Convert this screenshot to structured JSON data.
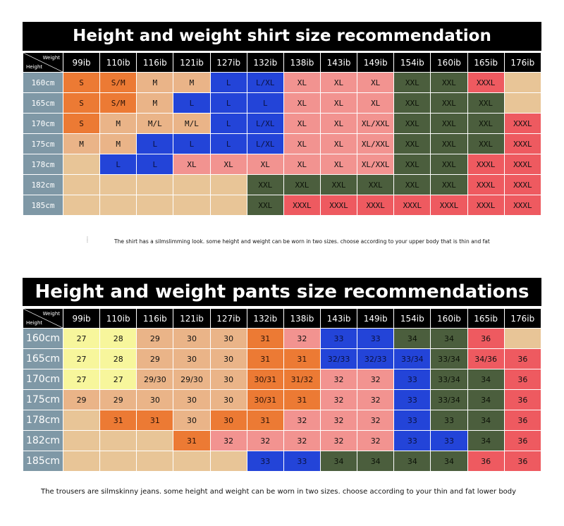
{
  "shirt": {
    "title": "Height and weight shirt size recommendation",
    "corner_weight": "Weight",
    "corner_height": "Height",
    "columns": [
      "99ib",
      "110ib",
      "116ib",
      "121ib",
      "127ib",
      "132ib",
      "138ib",
      "143ib",
      "149ib",
      "154ib",
      "160ib",
      "165ib",
      "176ib"
    ],
    "rows": [
      {
        "height": "160cm",
        "cells": [
          {
            "v": "S",
            "c": "o"
          },
          {
            "v": "S/M",
            "c": "o"
          },
          {
            "v": "M",
            "c": "t"
          },
          {
            "v": "M",
            "c": "t"
          },
          {
            "v": "L",
            "c": "b"
          },
          {
            "v": "L/XL",
            "c": "b"
          },
          {
            "v": "XL",
            "c": "p"
          },
          {
            "v": "XL",
            "c": "p"
          },
          {
            "v": "XL",
            "c": "p"
          },
          {
            "v": "XXL",
            "c": "g"
          },
          {
            "v": "XXL",
            "c": "g"
          },
          {
            "v": "XXXL",
            "c": "r"
          },
          {
            "v": "",
            "c": "e"
          }
        ]
      },
      {
        "height": "165cm",
        "cells": [
          {
            "v": "S",
            "c": "o"
          },
          {
            "v": "S/M",
            "c": "o"
          },
          {
            "v": "M",
            "c": "t"
          },
          {
            "v": "L",
            "c": "b"
          },
          {
            "v": "L",
            "c": "b"
          },
          {
            "v": "L",
            "c": "b"
          },
          {
            "v": "XL",
            "c": "p"
          },
          {
            "v": "XL",
            "c": "p"
          },
          {
            "v": "XL",
            "c": "p"
          },
          {
            "v": "XXL",
            "c": "g"
          },
          {
            "v": "XXL",
            "c": "g"
          },
          {
            "v": "XXL",
            "c": "g"
          },
          {
            "v": "",
            "c": "e"
          }
        ]
      },
      {
        "height": "170cm",
        "cells": [
          {
            "v": "S",
            "c": "o"
          },
          {
            "v": "M",
            "c": "t"
          },
          {
            "v": "M/L",
            "c": "t"
          },
          {
            "v": "M/L",
            "c": "t"
          },
          {
            "v": "L",
            "c": "b"
          },
          {
            "v": "L/XL",
            "c": "b"
          },
          {
            "v": "XL",
            "c": "p"
          },
          {
            "v": "XL",
            "c": "p"
          },
          {
            "v": "XL/XXL",
            "c": "p"
          },
          {
            "v": "XXL",
            "c": "g"
          },
          {
            "v": "XXL",
            "c": "g"
          },
          {
            "v": "XXL",
            "c": "g"
          },
          {
            "v": "XXXL",
            "c": "r"
          }
        ]
      },
      {
        "height": "175cm",
        "cells": [
          {
            "v": "M",
            "c": "t"
          },
          {
            "v": "M",
            "c": "t"
          },
          {
            "v": "L",
            "c": "b"
          },
          {
            "v": "L",
            "c": "b"
          },
          {
            "v": "L",
            "c": "b"
          },
          {
            "v": "L/XL",
            "c": "b"
          },
          {
            "v": "XL",
            "c": "p"
          },
          {
            "v": "XL",
            "c": "p"
          },
          {
            "v": "XL/XXL",
            "c": "p"
          },
          {
            "v": "XXL",
            "c": "g"
          },
          {
            "v": "XXL",
            "c": "g"
          },
          {
            "v": "XXL",
            "c": "g"
          },
          {
            "v": "XXXL",
            "c": "r"
          }
        ]
      },
      {
        "height": "178cm",
        "cells": [
          {
            "v": "",
            "c": "e"
          },
          {
            "v": "L",
            "c": "b"
          },
          {
            "v": "L",
            "c": "b"
          },
          {
            "v": "XL",
            "c": "p"
          },
          {
            "v": "XL",
            "c": "p"
          },
          {
            "v": "XL",
            "c": "p"
          },
          {
            "v": "XL",
            "c": "p"
          },
          {
            "v": "XL",
            "c": "p"
          },
          {
            "v": "XL/XXL",
            "c": "p"
          },
          {
            "v": "XXL",
            "c": "g"
          },
          {
            "v": "XXL",
            "c": "g"
          },
          {
            "v": "XXXL",
            "c": "r"
          },
          {
            "v": "XXXL",
            "c": "r"
          }
        ]
      },
      {
        "height": "182cm",
        "cells": [
          {
            "v": "",
            "c": "e"
          },
          {
            "v": "",
            "c": "e"
          },
          {
            "v": "",
            "c": "e"
          },
          {
            "v": "",
            "c": "e"
          },
          {
            "v": "",
            "c": "e"
          },
          {
            "v": "XXL",
            "c": "g"
          },
          {
            "v": "XXL",
            "c": "g"
          },
          {
            "v": "XXL",
            "c": "g"
          },
          {
            "v": "XXL",
            "c": "g"
          },
          {
            "v": "XXL",
            "c": "g"
          },
          {
            "v": "XXL",
            "c": "g"
          },
          {
            "v": "XXXL",
            "c": "r"
          },
          {
            "v": "XXXL",
            "c": "r"
          }
        ]
      },
      {
        "height": "185cm",
        "cells": [
          {
            "v": "",
            "c": "e"
          },
          {
            "v": "",
            "c": "e"
          },
          {
            "v": "",
            "c": "e"
          },
          {
            "v": "",
            "c": "e"
          },
          {
            "v": "",
            "c": "e"
          },
          {
            "v": "XXL",
            "c": "g"
          },
          {
            "v": "XXXL",
            "c": "r"
          },
          {
            "v": "XXXL",
            "c": "r"
          },
          {
            "v": "XXXL",
            "c": "r"
          },
          {
            "v": "XXXL",
            "c": "r"
          },
          {
            "v": "XXXL",
            "c": "r"
          },
          {
            "v": "XXXL",
            "c": "r"
          },
          {
            "v": "XXXL",
            "c": "r"
          }
        ]
      }
    ],
    "note": "The shirt has a silmslimming look. some height and weight can be worn in two sizes. choose according to your upper body that is thin and fat"
  },
  "pants": {
    "title": "Height and weight pants size recommendations",
    "corner_weight": "Weight",
    "corner_height": "Height",
    "columns": [
      "99ib",
      "110ib",
      "116ib",
      "121ib",
      "127ib",
      "132ib",
      "138ib",
      "143ib",
      "149ib",
      "154ib",
      "160ib",
      "165ib",
      "176ib"
    ],
    "rows": [
      {
        "height": "160cm",
        "cells": [
          {
            "v": "27",
            "c": "y"
          },
          {
            "v": "28",
            "c": "y"
          },
          {
            "v": "29",
            "c": "t"
          },
          {
            "v": "30",
            "c": "t"
          },
          {
            "v": "30",
            "c": "t"
          },
          {
            "v": "31",
            "c": "o"
          },
          {
            "v": "32",
            "c": "p"
          },
          {
            "v": "33",
            "c": "b"
          },
          {
            "v": "33",
            "c": "b"
          },
          {
            "v": "34",
            "c": "g"
          },
          {
            "v": "34",
            "c": "g"
          },
          {
            "v": "36",
            "c": "r"
          },
          {
            "v": "",
            "c": "e"
          }
        ]
      },
      {
        "height": "165cm",
        "cells": [
          {
            "v": "27",
            "c": "y"
          },
          {
            "v": "28",
            "c": "y"
          },
          {
            "v": "29",
            "c": "t"
          },
          {
            "v": "30",
            "c": "t"
          },
          {
            "v": "30",
            "c": "t"
          },
          {
            "v": "31",
            "c": "o"
          },
          {
            "v": "31",
            "c": "o"
          },
          {
            "v": "32/33",
            "c": "b"
          },
          {
            "v": "32/33",
            "c": "b"
          },
          {
            "v": "33/34",
            "c": "b"
          },
          {
            "v": "33/34",
            "c": "g"
          },
          {
            "v": "34/36",
            "c": "r"
          },
          {
            "v": "36",
            "c": "r"
          }
        ]
      },
      {
        "height": "170cm",
        "cells": [
          {
            "v": "27",
            "c": "y"
          },
          {
            "v": "27",
            "c": "y"
          },
          {
            "v": "29/30",
            "c": "t"
          },
          {
            "v": "29/30",
            "c": "t"
          },
          {
            "v": "30",
            "c": "t"
          },
          {
            "v": "30/31",
            "c": "o"
          },
          {
            "v": "31/32",
            "c": "o"
          },
          {
            "v": "32",
            "c": "p"
          },
          {
            "v": "32",
            "c": "p"
          },
          {
            "v": "33",
            "c": "b"
          },
          {
            "v": "33/34",
            "c": "g"
          },
          {
            "v": "34",
            "c": "g"
          },
          {
            "v": "36",
            "c": "r"
          }
        ]
      },
      {
        "height": "175cm",
        "cells": [
          {
            "v": "29",
            "c": "t"
          },
          {
            "v": "29",
            "c": "t"
          },
          {
            "v": "30",
            "c": "t"
          },
          {
            "v": "30",
            "c": "t"
          },
          {
            "v": "30",
            "c": "t"
          },
          {
            "v": "30/31",
            "c": "o"
          },
          {
            "v": "31",
            "c": "o"
          },
          {
            "v": "32",
            "c": "p"
          },
          {
            "v": "32",
            "c": "p"
          },
          {
            "v": "33",
            "c": "b"
          },
          {
            "v": "33/34",
            "c": "g"
          },
          {
            "v": "34",
            "c": "g"
          },
          {
            "v": "36",
            "c": "r"
          }
        ]
      },
      {
        "height": "178cm",
        "cells": [
          {
            "v": "",
            "c": "e"
          },
          {
            "v": "31",
            "c": "o"
          },
          {
            "v": "31",
            "c": "o"
          },
          {
            "v": "30",
            "c": "t"
          },
          {
            "v": "30",
            "c": "o"
          },
          {
            "v": "31",
            "c": "o"
          },
          {
            "v": "32",
            "c": "p"
          },
          {
            "v": "32",
            "c": "p"
          },
          {
            "v": "32",
            "c": "p"
          },
          {
            "v": "33",
            "c": "b"
          },
          {
            "v": "33",
            "c": "g"
          },
          {
            "v": "34",
            "c": "g"
          },
          {
            "v": "36",
            "c": "r"
          }
        ]
      },
      {
        "height": "182cm",
        "cells": [
          {
            "v": "",
            "c": "e"
          },
          {
            "v": "",
            "c": "e"
          },
          {
            "v": "",
            "c": "e"
          },
          {
            "v": "31",
            "c": "o"
          },
          {
            "v": "32",
            "c": "p"
          },
          {
            "v": "32",
            "c": "p"
          },
          {
            "v": "32",
            "c": "p"
          },
          {
            "v": "32",
            "c": "p"
          },
          {
            "v": "32",
            "c": "p"
          },
          {
            "v": "33",
            "c": "b"
          },
          {
            "v": "33",
            "c": "b"
          },
          {
            "v": "34",
            "c": "g"
          },
          {
            "v": "36",
            "c": "r"
          }
        ]
      },
      {
        "height": "185cm",
        "cells": [
          {
            "v": "",
            "c": "e"
          },
          {
            "v": "",
            "c": "e"
          },
          {
            "v": "",
            "c": "e"
          },
          {
            "v": "",
            "c": "e"
          },
          {
            "v": "",
            "c": "e"
          },
          {
            "v": "33",
            "c": "b"
          },
          {
            "v": "33",
            "c": "b"
          },
          {
            "v": "34",
            "c": "g"
          },
          {
            "v": "34",
            "c": "g"
          },
          {
            "v": "34",
            "c": "g"
          },
          {
            "v": "34",
            "c": "g"
          },
          {
            "v": "36",
            "c": "r"
          },
          {
            "v": "36",
            "c": "r"
          }
        ]
      }
    ],
    "note": "The trousers are silmskinny jeans. some height and weight can be worn in two sizes. choose according to your thin and fat lower body"
  },
  "colors": {
    "o": "#ec7a34",
    "t": "#eab488",
    "b": "#2344d8",
    "p": "#f29390",
    "g": "#4b5e3d",
    "r": "#ee5a60",
    "y": "#f7f69c",
    "e": "#e8c597"
  }
}
